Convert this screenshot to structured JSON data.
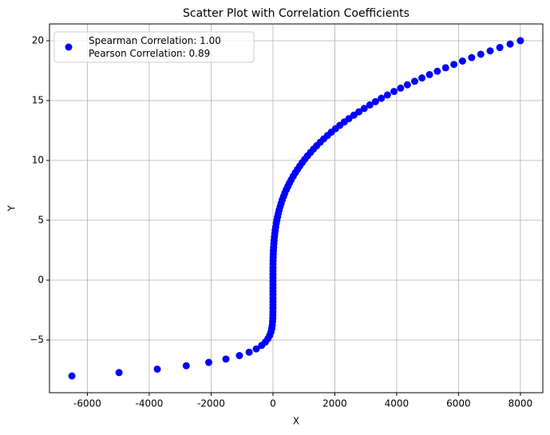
{
  "chart_data": {
    "type": "scatter",
    "title": "Scatter Plot with Correlation Coefficients",
    "x_label": "X",
    "y_label": "Y",
    "series": [
      {
        "name": "Spearman Correlation: 1.00\nPearson Correlation: 0.89",
        "color": "#0000ff",
        "x": [
          -6500,
          -4977,
          -3740,
          -2803,
          -2076,
          -1521,
          -1084,
          -770,
          -539,
          -365,
          -245,
          -163,
          -105,
          -64,
          -39,
          -23,
          -12,
          -7,
          -4,
          -2,
          -1,
          0,
          0,
          0,
          0,
          0,
          0,
          0,
          0,
          0,
          0,
          0,
          1,
          2,
          4,
          7,
          10,
          15,
          21,
          28,
          36,
          47,
          58,
          72,
          88,
          106,
          126,
          148,
          174,
          201,
          232,
          265,
          302,
          342,
          384,
          432,
          482,
          535,
          593,
          656,
          722,
          792,
          868,
          947,
          1030,
          1118,
          1215,
          1313,
          1416,
          1529,
          1643,
          1763,
          1888,
          2024,
          2162,
          2305,
          2455,
          2617,
          2779,
          2949,
          3132,
          3315,
          3505,
          3702,
          3914,
          4127,
          4347,
          4583,
          4818,
          5062,
          5314,
          5583,
          5851,
          6129,
          6425,
          6719,
          7023,
          7335,
          7669,
          8000
        ],
        "values": [
          -8.0,
          -7.72,
          -7.43,
          -7.15,
          -6.87,
          -6.59,
          -6.3,
          -6.02,
          -5.74,
          -5.45,
          -5.17,
          -4.89,
          -4.61,
          -4.32,
          -4.04,
          -3.76,
          -3.47,
          -3.19,
          -2.91,
          -2.63,
          -2.34,
          -2.06,
          -1.78,
          -1.49,
          -1.21,
          -0.93,
          -0.65,
          -0.36,
          -0.08,
          0.2,
          0.48,
          0.77,
          1.05,
          1.33,
          1.62,
          1.9,
          2.18,
          2.46,
          2.75,
          3.03,
          3.31,
          3.6,
          3.88,
          4.16,
          4.44,
          4.73,
          5.01,
          5.29,
          5.58,
          5.86,
          6.14,
          6.42,
          6.71,
          6.99,
          7.27,
          7.56,
          7.84,
          8.12,
          8.4,
          8.69,
          8.97,
          9.25,
          9.54,
          9.82,
          10.1,
          10.38,
          10.67,
          10.95,
          11.23,
          11.52,
          11.8,
          12.08,
          12.36,
          12.65,
          12.93,
          13.21,
          13.49,
          13.78,
          14.06,
          14.34,
          14.63,
          14.91,
          15.19,
          15.47,
          15.76,
          16.04,
          16.32,
          16.61,
          16.89,
          17.17,
          17.45,
          17.74,
          18.02,
          18.3,
          18.59,
          18.87,
          19.15,
          19.43,
          19.72,
          20.0
        ]
      }
    ],
    "xlim": [
      -7225,
      8725
    ],
    "ylim": [
      -9.4,
      21.4
    ],
    "xticks": [
      -6000,
      -4000,
      -2000,
      0,
      2000,
      4000,
      6000,
      8000
    ],
    "yticks": [
      {
        "value": -5,
        "label": "−5"
      },
      0,
      5,
      10,
      15,
      20
    ],
    "grid": true,
    "legend": "upper left"
  }
}
